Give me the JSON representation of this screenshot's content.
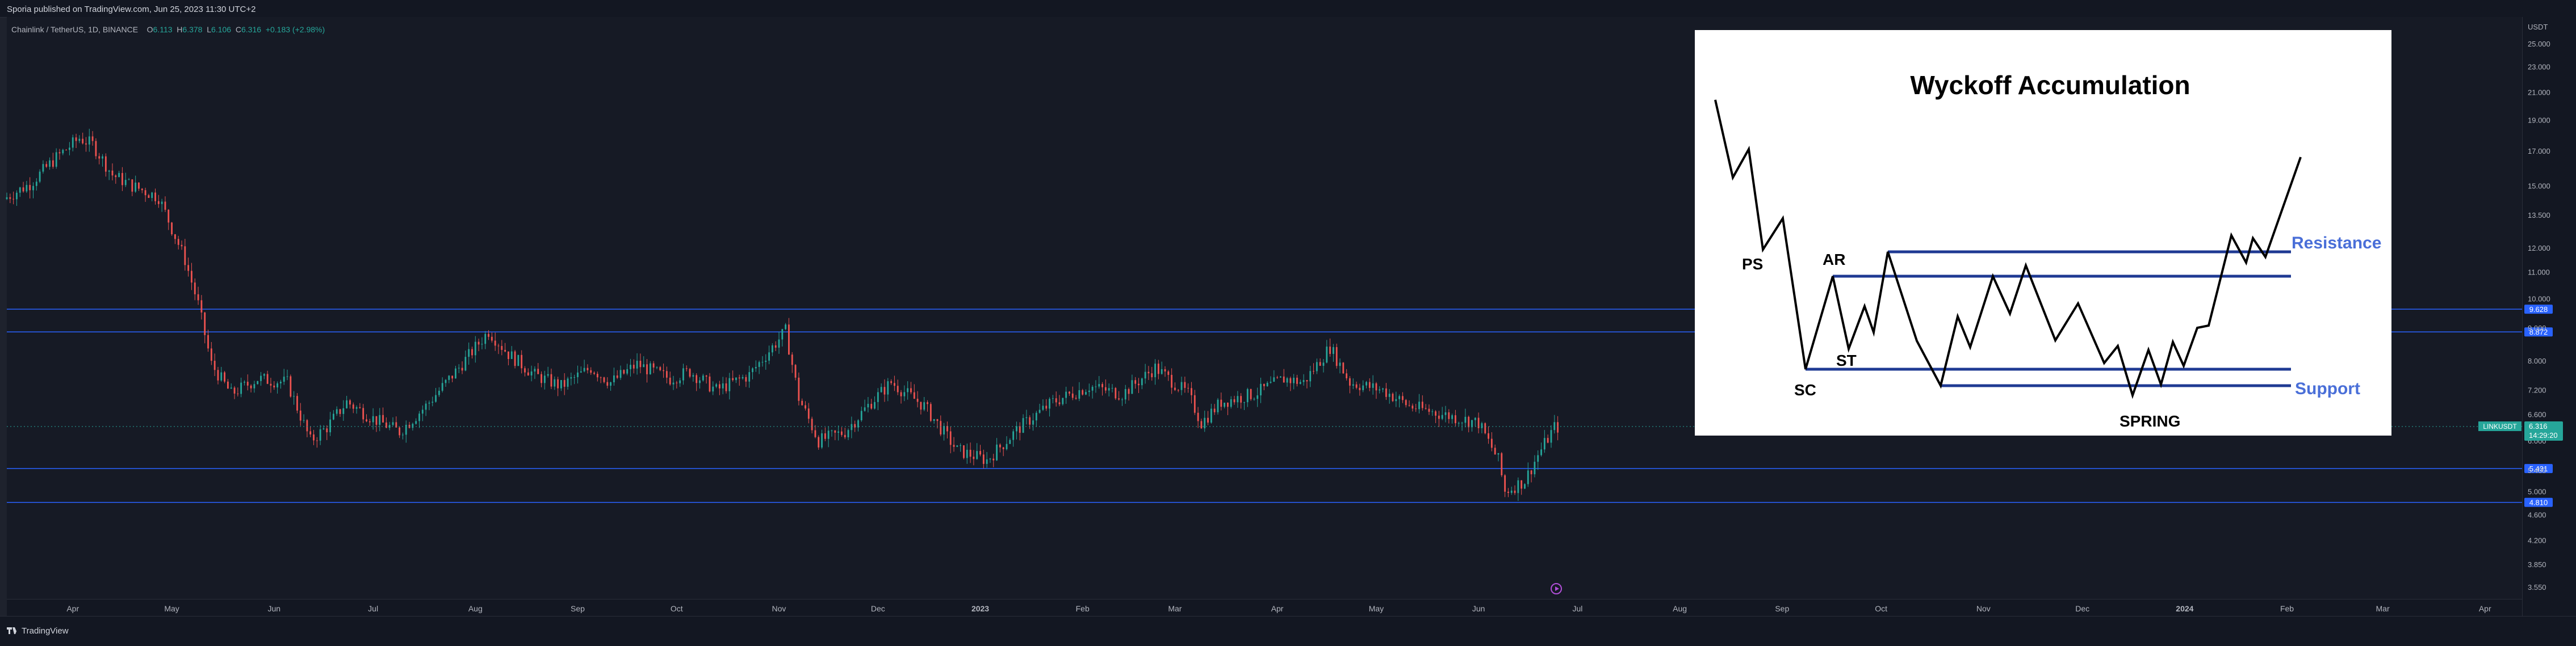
{
  "header": {
    "published": "Sporia published on TradingView.com, Jun 25, 2023 11:30 UTC+2"
  },
  "legend": {
    "symbol": "Chainlink / TetherUS, 1D, BINANCE",
    "open_label": "O",
    "open": "6.113",
    "high_label": "H",
    "high": "6.378",
    "low_label": "L",
    "low": "6.106",
    "close_label": "C",
    "close": "6.316",
    "change": "+0.183 (+2.98%)"
  },
  "footer": {
    "brand": "TradingView"
  },
  "colors": {
    "up": "#26a69a",
    "down": "#ef5350",
    "level": "#2962ff",
    "inset_line": "#1f3a93",
    "inset_accent": "#4a6fd8",
    "bg": "#161a25"
  },
  "icons": {
    "replay": "replay-play-icon",
    "brand": "tradingview-logo-icon"
  },
  "chart_data": {
    "type": "candlestick",
    "symbol": "LINKUSDT",
    "timeframe": "1D",
    "y_scale": "log",
    "ylim": [
      3.4,
      27.5
    ],
    "currency": "USDT",
    "price_ticks": [
      "25.000",
      "23.000",
      "21.000",
      "19.000",
      "17.000",
      "15.000",
      "13.500",
      "12.000",
      "11.000",
      "10.000",
      "9.000",
      "8.000",
      "7.200",
      "6.600",
      "6.000",
      "5.400",
      "5.000",
      "4.600",
      "4.200",
      "3.850",
      "3.550"
    ],
    "price_tick_values": [
      25,
      23,
      21,
      19,
      17,
      15,
      13.5,
      12,
      11,
      10,
      9,
      8,
      7.2,
      6.6,
      6,
      5.4,
      5,
      4.6,
      4.2,
      3.85,
      3.55
    ],
    "time_ticks": [
      "Apr",
      "May",
      "Jun",
      "Jul",
      "Aug",
      "Sep",
      "Oct",
      "Nov",
      "Dec",
      "2023",
      "Feb",
      "Mar",
      "Apr",
      "May",
      "Jun",
      "Jul",
      "Aug",
      "Sep",
      "Oct",
      "Nov",
      "Dec",
      "2024",
      "Feb",
      "Mar",
      "Apr"
    ],
    "time_tick_dates": [
      "2022-04-01",
      "2022-05-01",
      "2022-06-01",
      "2022-07-01",
      "2022-08-01",
      "2022-09-01",
      "2022-10-01",
      "2022-11-01",
      "2022-12-01",
      "2023-01-01",
      "2023-02-01",
      "2023-03-01",
      "2023-04-01",
      "2023-05-01",
      "2023-06-01",
      "2023-07-01",
      "2023-08-01",
      "2023-09-01",
      "2023-10-01",
      "2023-11-01",
      "2023-12-01",
      "2024-01-01",
      "2024-02-01",
      "2024-03-01",
      "2024-04-01"
    ],
    "horizontal_levels": [
      {
        "value": 9.628,
        "label": "9.628"
      },
      {
        "value": 8.872,
        "label": "8.872"
      },
      {
        "value": 5.431,
        "label": "5.431"
      },
      {
        "value": 4.81,
        "label": "4.810"
      }
    ],
    "last_price": {
      "symbol": "LINKUSDT",
      "value": "6.316",
      "countdown": "14:29:20"
    },
    "path_dates": [
      "2022-03-12",
      "2022-03-20",
      "2022-03-28",
      "2022-04-04",
      "2022-04-08",
      "2022-04-14",
      "2022-04-20",
      "2022-04-28",
      "2022-05-06",
      "2022-05-10",
      "2022-05-14",
      "2022-05-20",
      "2022-05-28",
      "2022-06-06",
      "2022-06-13",
      "2022-06-18",
      "2022-06-24",
      "2022-07-02",
      "2022-07-10",
      "2022-07-18",
      "2022-07-28",
      "2022-08-06",
      "2022-08-12",
      "2022-08-20",
      "2022-08-28",
      "2022-09-06",
      "2022-09-12",
      "2022-09-20",
      "2022-09-30",
      "2022-10-06",
      "2022-10-14",
      "2022-10-24",
      "2022-11-04",
      "2022-11-08",
      "2022-11-14",
      "2022-11-22",
      "2022-11-30",
      "2022-12-06",
      "2022-12-16",
      "2022-12-26",
      "2023-01-04",
      "2023-01-14",
      "2023-01-24",
      "2023-02-04",
      "2023-02-14",
      "2023-02-24",
      "2023-03-06",
      "2023-03-10",
      "2023-03-16",
      "2023-03-26",
      "2023-04-04",
      "2023-04-10",
      "2023-04-18",
      "2023-04-24",
      "2023-05-04",
      "2023-05-12",
      "2023-05-22",
      "2023-06-02",
      "2023-06-08",
      "2023-06-10",
      "2023-06-16",
      "2023-06-20",
      "2023-06-25"
    ],
    "path_prices": [
      14.3,
      15.1,
      16.6,
      17.8,
      17.4,
      15.6,
      15.0,
      14.4,
      11.5,
      9.8,
      7.9,
      7.1,
      7.5,
      7.4,
      6.0,
      6.3,
      6.9,
      6.5,
      6.2,
      6.8,
      7.8,
      8.9,
      8.2,
      7.6,
      7.3,
      7.8,
      7.4,
      7.9,
      7.5,
      7.7,
      7.2,
      7.6,
      8.9,
      7.0,
      6.0,
      6.2,
      6.9,
      7.4,
      6.8,
      5.8,
      5.6,
      6.3,
      6.9,
      7.3,
      7.1,
      7.8,
      7.1,
      6.4,
      6.9,
      7.1,
      7.5,
      7.4,
      8.4,
      7.4,
      7.2,
      6.8,
      6.6,
      6.4,
      5.6,
      5.0,
      5.2,
      5.7,
      6.3
    ]
  },
  "inset": {
    "title": "Wyckoff Accumulation",
    "labels": {
      "ps": "PS",
      "ar": "AR",
      "st": "ST",
      "sc": "SC",
      "spring": "SPRING",
      "resistance": "Resistance",
      "support": "Support"
    }
  }
}
